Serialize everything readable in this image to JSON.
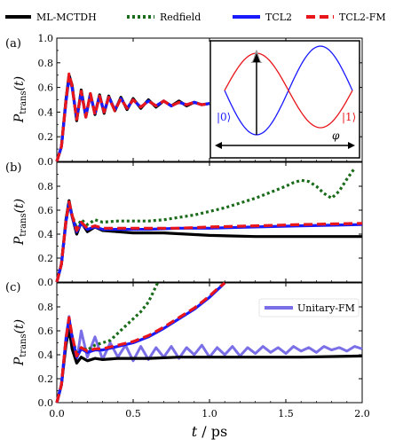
{
  "legend": [
    {
      "label": "ML-MCTDH",
      "color": "#000000",
      "style": "solid"
    },
    {
      "label": "Redfield",
      "color": "#1a6b1a",
      "style": "dotted"
    },
    {
      "label": "TCL2",
      "color": "#1a1aff",
      "style": "solid"
    },
    {
      "label": "TCL2-FM",
      "color": "#e8161b",
      "style": "dashed"
    }
  ],
  "xlabel": "t / ps",
  "ylabel": "P_trans(t)",
  "x_ticks": [
    "0.0",
    "0.5",
    "1.0",
    "1.5",
    "2.0"
  ],
  "inset": {
    "ket0": "|0⟩",
    "ket1": "|1⟩",
    "axis_label": "φ"
  },
  "chart_data": [
    {
      "type": "line",
      "panel": "(a)",
      "xlim": [
        0,
        2.0
      ],
      "ylim": [
        0,
        1.0
      ],
      "y_ticks": [
        "0.0",
        "0.2",
        "0.4",
        "0.6",
        "0.8",
        "1.0"
      ],
      "series": [
        {
          "name": "ML-MCTDH",
          "x": [
            0,
            0.03,
            0.06,
            0.08,
            0.1,
            0.13,
            0.16,
            0.19,
            0.22,
            0.25,
            0.28,
            0.31,
            0.34,
            0.38,
            0.42,
            0.46,
            0.5,
            0.55,
            0.6,
            0.65,
            0.7,
            0.75,
            0.8,
            0.85,
            0.9,
            0.95,
            1.0
          ],
          "y": [
            0,
            0.12,
            0.5,
            0.7,
            0.62,
            0.33,
            0.58,
            0.36,
            0.55,
            0.38,
            0.54,
            0.39,
            0.53,
            0.41,
            0.52,
            0.42,
            0.51,
            0.43,
            0.5,
            0.44,
            0.49,
            0.45,
            0.49,
            0.45,
            0.48,
            0.46,
            0.47
          ]
        },
        {
          "name": "TCL2",
          "x": [
            0,
            0.03,
            0.06,
            0.08,
            0.1,
            0.13,
            0.16,
            0.19,
            0.22,
            0.25,
            0.28,
            0.31,
            0.34,
            0.38,
            0.42,
            0.46,
            0.5,
            0.55,
            0.6,
            0.65,
            0.7,
            0.75,
            0.8,
            0.85,
            0.9,
            0.95,
            1.0
          ],
          "y": [
            0,
            0.12,
            0.48,
            0.68,
            0.6,
            0.35,
            0.56,
            0.37,
            0.54,
            0.39,
            0.53,
            0.4,
            0.52,
            0.42,
            0.51,
            0.43,
            0.5,
            0.44,
            0.49,
            0.45,
            0.49,
            0.45,
            0.48,
            0.46,
            0.48,
            0.46,
            0.47
          ]
        },
        {
          "name": "TCL2-FM",
          "x": [
            0,
            0.03,
            0.06,
            0.08,
            0.1,
            0.13,
            0.16,
            0.19,
            0.22,
            0.25,
            0.28,
            0.31,
            0.34,
            0.38,
            0.42,
            0.46,
            0.5,
            0.55,
            0.6,
            0.65,
            0.7,
            0.75,
            0.8,
            0.85,
            0.9,
            0.95,
            1.0
          ],
          "y": [
            0,
            0.12,
            0.49,
            0.71,
            0.61,
            0.34,
            0.57,
            0.36,
            0.55,
            0.38,
            0.53,
            0.4,
            0.52,
            0.41,
            0.51,
            0.43,
            0.5,
            0.44,
            0.49,
            0.45,
            0.49,
            0.45,
            0.48,
            0.46,
            0.48,
            0.46,
            0.47
          ]
        }
      ]
    },
    {
      "type": "line",
      "panel": "(b)",
      "xlim": [
        0,
        2.0
      ],
      "ylim": [
        0,
        1.0
      ],
      "y_ticks": [
        "0.0",
        "0.2",
        "0.4",
        "0.6",
        "0.8"
      ],
      "series": [
        {
          "name": "ML-MCTDH",
          "x": [
            0,
            0.03,
            0.06,
            0.08,
            0.1,
            0.13,
            0.16,
            0.2,
            0.25,
            0.3,
            0.4,
            0.5,
            0.7,
            1.0,
            1.3,
            1.6,
            2.0
          ],
          "y": [
            0,
            0.15,
            0.52,
            0.68,
            0.55,
            0.4,
            0.5,
            0.42,
            0.46,
            0.43,
            0.42,
            0.41,
            0.41,
            0.39,
            0.38,
            0.38,
            0.38
          ]
        },
        {
          "name": "Redfield",
          "x": [
            0,
            0.03,
            0.06,
            0.08,
            0.1,
            0.13,
            0.16,
            0.2,
            0.25,
            0.3,
            0.4,
            0.5,
            0.6,
            0.7,
            0.8,
            0.9,
            1.0,
            1.1,
            1.2,
            1.3,
            1.4,
            1.5,
            1.55,
            1.6,
            1.65,
            1.7,
            1.75,
            1.8,
            1.85,
            1.9,
            1.95
          ],
          "y": [
            0,
            0.15,
            0.5,
            0.66,
            0.56,
            0.45,
            0.52,
            0.48,
            0.52,
            0.5,
            0.51,
            0.51,
            0.51,
            0.52,
            0.54,
            0.56,
            0.59,
            0.62,
            0.66,
            0.7,
            0.75,
            0.8,
            0.83,
            0.85,
            0.84,
            0.8,
            0.74,
            0.7,
            0.76,
            0.86,
            0.95
          ]
        },
        {
          "name": "TCL2",
          "x": [
            0,
            0.03,
            0.06,
            0.08,
            0.1,
            0.13,
            0.16,
            0.2,
            0.25,
            0.3,
            0.4,
            0.6,
            0.8,
            1.0,
            1.3,
            1.6,
            2.0
          ],
          "y": [
            0,
            0.15,
            0.5,
            0.66,
            0.55,
            0.42,
            0.49,
            0.44,
            0.46,
            0.44,
            0.44,
            0.44,
            0.45,
            0.45,
            0.46,
            0.47,
            0.48
          ]
        },
        {
          "name": "TCL2-FM",
          "x": [
            0,
            0.03,
            0.06,
            0.08,
            0.1,
            0.13,
            0.16,
            0.2,
            0.25,
            0.3,
            0.4,
            0.6,
            0.8,
            1.0,
            1.3,
            1.6,
            2.0
          ],
          "y": [
            0,
            0.15,
            0.51,
            0.67,
            0.56,
            0.43,
            0.5,
            0.45,
            0.47,
            0.45,
            0.45,
            0.45,
            0.45,
            0.46,
            0.47,
            0.48,
            0.49
          ]
        }
      ]
    },
    {
      "type": "line",
      "panel": "(c)",
      "xlim": [
        0,
        2.0
      ],
      "ylim": [
        0,
        1.0
      ],
      "y_ticks": [
        "0.0",
        "0.2",
        "0.4",
        "0.6",
        "0.8"
      ],
      "series": [
        {
          "name": "ML-MCTDH",
          "x": [
            0,
            0.03,
            0.06,
            0.08,
            0.1,
            0.13,
            0.16,
            0.2,
            0.25,
            0.3,
            0.4,
            0.6,
            0.8,
            1.0,
            1.3,
            1.6,
            2.0
          ],
          "y": [
            0,
            0.15,
            0.48,
            0.62,
            0.45,
            0.33,
            0.38,
            0.35,
            0.37,
            0.36,
            0.37,
            0.37,
            0.38,
            0.38,
            0.38,
            0.38,
            0.39
          ]
        },
        {
          "name": "Redfield",
          "x": [
            0,
            0.03,
            0.06,
            0.08,
            0.1,
            0.13,
            0.16,
            0.2,
            0.25,
            0.3,
            0.35,
            0.4,
            0.45,
            0.5,
            0.55,
            0.6,
            0.63,
            0.66
          ],
          "y": [
            0,
            0.15,
            0.52,
            0.7,
            0.56,
            0.4,
            0.46,
            0.44,
            0.48,
            0.5,
            0.52,
            0.58,
            0.64,
            0.7,
            0.76,
            0.84,
            0.92,
            1.0
          ]
        },
        {
          "name": "TCL2",
          "x": [
            0,
            0.03,
            0.06,
            0.08,
            0.1,
            0.13,
            0.16,
            0.2,
            0.25,
            0.3,
            0.4,
            0.5,
            0.6,
            0.7,
            0.8,
            0.9,
            1.0,
            1.05,
            1.1
          ],
          "y": [
            0,
            0.15,
            0.52,
            0.7,
            0.55,
            0.38,
            0.45,
            0.42,
            0.44,
            0.44,
            0.47,
            0.5,
            0.55,
            0.62,
            0.7,
            0.78,
            0.88,
            0.94,
            1.0
          ]
        },
        {
          "name": "TCL2-FM",
          "x": [
            0,
            0.03,
            0.06,
            0.08,
            0.1,
            0.13,
            0.16,
            0.2,
            0.25,
            0.3,
            0.4,
            0.5,
            0.6,
            0.7,
            0.8,
            0.9,
            1.0,
            1.05,
            1.1
          ],
          "y": [
            0,
            0.15,
            0.53,
            0.71,
            0.56,
            0.39,
            0.46,
            0.43,
            0.45,
            0.45,
            0.48,
            0.51,
            0.56,
            0.63,
            0.71,
            0.79,
            0.89,
            0.95,
            1.0
          ]
        },
        {
          "name": "Unitary-FM",
          "x": [
            0,
            0.03,
            0.06,
            0.08,
            0.1,
            0.13,
            0.16,
            0.2,
            0.25,
            0.3,
            0.35,
            0.4,
            0.45,
            0.5,
            0.55,
            0.6,
            0.65,
            0.7,
            0.75,
            0.8,
            0.85,
            0.9,
            0.95,
            1.0,
            1.05,
            1.1,
            1.15,
            1.2,
            1.25,
            1.3,
            1.35,
            1.4,
            1.45,
            1.5,
            1.55,
            1.6,
            1.65,
            1.7,
            1.75,
            1.8,
            1.85,
            1.9,
            1.95,
            2.0
          ],
          "y": [
            0,
            0.15,
            0.55,
            0.72,
            0.5,
            0.35,
            0.6,
            0.38,
            0.55,
            0.36,
            0.5,
            0.38,
            0.48,
            0.35,
            0.47,
            0.36,
            0.46,
            0.38,
            0.47,
            0.37,
            0.46,
            0.4,
            0.48,
            0.38,
            0.46,
            0.4,
            0.47,
            0.39,
            0.46,
            0.41,
            0.47,
            0.42,
            0.46,
            0.41,
            0.47,
            0.43,
            0.46,
            0.42,
            0.47,
            0.44,
            0.46,
            0.43,
            0.47,
            0.45
          ]
        }
      ]
    }
  ]
}
